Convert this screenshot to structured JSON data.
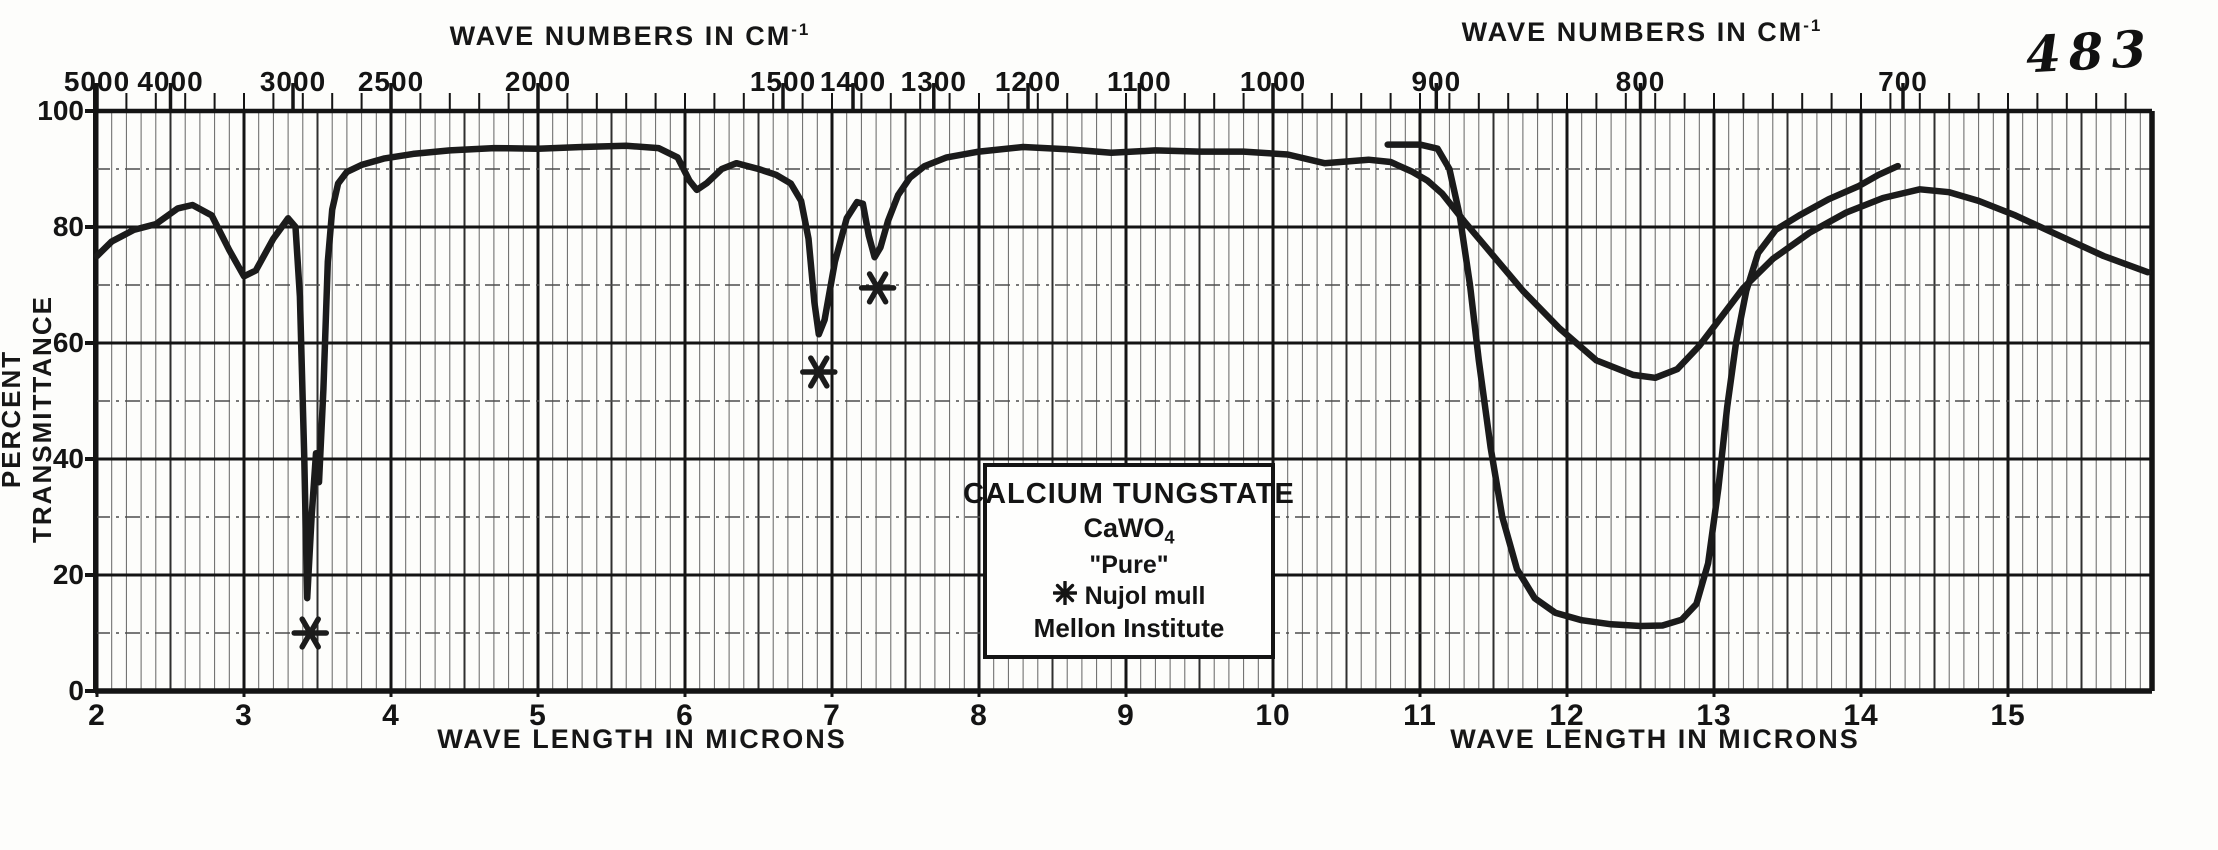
{
  "page": {
    "annotation_number": "483"
  },
  "colors": {
    "ink": "#161616",
    "curve": "#1b1b1b",
    "grid_major": "#141414",
    "grid_medium": "#2f2f2f",
    "grid_minor": "#646464",
    "grid_dashed": "#4d4d4d",
    "paper": "#fdfdfb"
  },
  "top_axis": {
    "title": "WAVE NUMBERS IN CM",
    "title_sup": "-1",
    "labels": [
      {
        "wavenumber": 5000,
        "text": "5000"
      },
      {
        "wavenumber": 4000,
        "text": "4000"
      },
      {
        "wavenumber": 3000,
        "text": "3000"
      },
      {
        "wavenumber": 2500,
        "text": "2500"
      },
      {
        "wavenumber": 2000,
        "text": "2000"
      },
      {
        "wavenumber": 1500,
        "text": "1500"
      },
      {
        "wavenumber": 1400,
        "text": "1400"
      },
      {
        "wavenumber": 1300,
        "text": "1300"
      },
      {
        "wavenumber": 1200,
        "text": "1200"
      },
      {
        "wavenumber": 1100,
        "text": "1100"
      },
      {
        "wavenumber": 1000,
        "text": "1000"
      },
      {
        "wavenumber": 900,
        "text": "900"
      },
      {
        "wavenumber": 800,
        "text": "800"
      },
      {
        "wavenumber": 700,
        "text": "700"
      }
    ]
  },
  "bottom_axis": {
    "title": "WAVE LENGTH IN MICRONS",
    "labels": [
      {
        "micron": 2,
        "text": "2"
      },
      {
        "micron": 3,
        "text": "3"
      },
      {
        "micron": 4,
        "text": "4"
      },
      {
        "micron": 5,
        "text": "5"
      },
      {
        "micron": 6,
        "text": "6"
      },
      {
        "micron": 7,
        "text": "7"
      },
      {
        "micron": 8,
        "text": "8"
      },
      {
        "micron": 9,
        "text": "9"
      },
      {
        "micron": 10,
        "text": "10"
      },
      {
        "micron": 11,
        "text": "11"
      },
      {
        "micron": 12,
        "text": "12"
      },
      {
        "micron": 13,
        "text": "13"
      },
      {
        "micron": 14,
        "text": "14"
      },
      {
        "micron": 15,
        "text": "15"
      }
    ]
  },
  "y_axis": {
    "title": "PERCENT TRANSMITTANCE",
    "labels": [
      {
        "value": 100,
        "text": "100"
      },
      {
        "value": 80,
        "text": "80"
      },
      {
        "value": 60,
        "text": "60"
      },
      {
        "value": 40,
        "text": "40"
      },
      {
        "value": 20,
        "text": "20"
      },
      {
        "value": 0,
        "text": "0"
      }
    ]
  },
  "sample_box": {
    "title": "CALCIUM TUNGSTATE",
    "formula_base": "CaWO",
    "formula_sub": "4",
    "purity": "\"Pure\"",
    "mull_label": "Nujol mull",
    "institute": "Mellon Institute"
  },
  "chart_data": {
    "type": "line",
    "title": "CALCIUM TUNGSTATE CaWO4 infrared spectrum, Nujol mull, Mellon Institute",
    "xlabel": "WAVE LENGTH IN MICRONS",
    "x2label": "WAVE NUMBERS IN CM-1",
    "ylabel": "PERCENT TRANSMITTANCE",
    "xlim_microns": [
      2,
      16
    ],
    "ylim_percent": [
      0,
      100
    ],
    "grid": {
      "vertical_minor_step_microns": 0.1,
      "vertical_medium_step_microns": 0.5,
      "vertical_major_step_microns": 1.0,
      "horizontal_major_step_percent": 20,
      "horizontal_dashed_step_percent": 10,
      "top_tick_step_microns": 0.2
    },
    "series": [
      {
        "name": "nujol-mull-spectrum",
        "points_microns_vs_transmittance": [
          [
            2.0,
            75
          ],
          [
            2.1,
            77.5
          ],
          [
            2.25,
            79.5
          ],
          [
            2.4,
            80.5
          ],
          [
            2.55,
            83.2
          ],
          [
            2.65,
            83.8
          ],
          [
            2.78,
            82
          ],
          [
            2.9,
            76
          ],
          [
            3.0,
            71.5
          ],
          [
            3.08,
            72.5
          ],
          [
            3.2,
            78
          ],
          [
            3.3,
            81.5
          ],
          [
            3.35,
            80
          ],
          [
            3.38,
            68
          ],
          [
            3.41,
            40
          ],
          [
            3.43,
            16
          ],
          [
            3.46,
            30
          ],
          [
            3.49,
            41
          ],
          [
            3.51,
            36
          ],
          [
            3.54,
            52
          ],
          [
            3.57,
            74
          ],
          [
            3.6,
            83
          ],
          [
            3.64,
            87.5
          ],
          [
            3.7,
            89.5
          ],
          [
            3.8,
            90.7
          ],
          [
            3.95,
            91.8
          ],
          [
            4.15,
            92.6
          ],
          [
            4.4,
            93.2
          ],
          [
            4.7,
            93.6
          ],
          [
            5.0,
            93.5
          ],
          [
            5.3,
            93.8
          ],
          [
            5.6,
            94
          ],
          [
            5.82,
            93.6
          ],
          [
            5.95,
            92
          ],
          [
            6.03,
            88
          ],
          [
            6.08,
            86.4
          ],
          [
            6.15,
            87.6
          ],
          [
            6.25,
            90
          ],
          [
            6.35,
            91
          ],
          [
            6.5,
            90
          ],
          [
            6.62,
            89
          ],
          [
            6.72,
            87.5
          ],
          [
            6.79,
            84.5
          ],
          [
            6.84,
            78
          ],
          [
            6.88,
            67
          ],
          [
            6.91,
            61.5
          ],
          [
            6.95,
            64
          ],
          [
            7.02,
            74
          ],
          [
            7.1,
            81.5
          ],
          [
            7.17,
            84.3
          ],
          [
            7.21,
            84
          ],
          [
            7.25,
            78.5
          ],
          [
            7.29,
            74.8
          ],
          [
            7.33,
            76.5
          ],
          [
            7.38,
            81
          ],
          [
            7.45,
            85.5
          ],
          [
            7.53,
            88.5
          ],
          [
            7.63,
            90.5
          ],
          [
            7.78,
            92
          ],
          [
            8.0,
            93
          ],
          [
            8.3,
            93.8
          ],
          [
            8.6,
            93.4
          ],
          [
            8.9,
            92.8
          ],
          [
            9.2,
            93.2
          ],
          [
            9.5,
            93
          ],
          [
            9.8,
            93
          ],
          [
            10.1,
            92.5
          ],
          [
            10.35,
            91
          ],
          [
            10.5,
            91.3
          ],
          [
            10.65,
            91.6
          ],
          [
            10.8,
            91.2
          ],
          [
            10.95,
            89.5
          ],
          [
            11.05,
            88
          ],
          [
            11.15,
            85.8
          ],
          [
            11.3,
            81
          ],
          [
            11.5,
            75
          ],
          [
            11.7,
            69
          ],
          [
            11.95,
            62.5
          ],
          [
            12.2,
            57
          ],
          [
            12.45,
            54.5
          ],
          [
            12.6,
            54
          ],
          [
            12.75,
            55.5
          ],
          [
            12.9,
            59.5
          ],
          [
            13.05,
            64.5
          ],
          [
            13.2,
            69.5
          ],
          [
            13.4,
            74.5
          ],
          [
            13.65,
            79
          ],
          [
            13.9,
            82.5
          ],
          [
            14.15,
            85
          ],
          [
            14.4,
            86.5
          ],
          [
            14.6,
            86
          ],
          [
            14.8,
            84.5
          ],
          [
            15.05,
            82
          ],
          [
            15.35,
            78.5
          ],
          [
            15.65,
            75
          ],
          [
            15.95,
            72.2
          ]
        ]
      },
      {
        "name": "second-trace-strong-band",
        "points_microns_vs_transmittance": [
          [
            10.78,
            94.2
          ],
          [
            11.0,
            94.2
          ],
          [
            11.12,
            93.5
          ],
          [
            11.2,
            90
          ],
          [
            11.27,
            82
          ],
          [
            11.34,
            70
          ],
          [
            11.4,
            57
          ],
          [
            11.48,
            42
          ],
          [
            11.56,
            30
          ],
          [
            11.66,
            21
          ],
          [
            11.78,
            16
          ],
          [
            11.92,
            13.5
          ],
          [
            12.1,
            12.2
          ],
          [
            12.3,
            11.5
          ],
          [
            12.5,
            11.2
          ],
          [
            12.65,
            11.3
          ],
          [
            12.78,
            12.3
          ],
          [
            12.88,
            15
          ],
          [
            12.96,
            22
          ],
          [
            13.03,
            35
          ],
          [
            13.09,
            49
          ],
          [
            13.15,
            60
          ],
          [
            13.22,
            69
          ],
          [
            13.3,
            75.5
          ],
          [
            13.42,
            79.5
          ],
          [
            13.58,
            82
          ],
          [
            13.78,
            84.8
          ],
          [
            13.98,
            87
          ],
          [
            14.12,
            89
          ],
          [
            14.25,
            90.5
          ]
        ]
      }
    ],
    "band_markers_asterisk": [
      {
        "micron": 3.45,
        "transmittance": 10
      },
      {
        "micron": 6.91,
        "transmittance": 55
      },
      {
        "micron": 7.31,
        "transmittance": 69.5
      }
    ],
    "legend_note": "asterisk = Nujol mull bands"
  }
}
